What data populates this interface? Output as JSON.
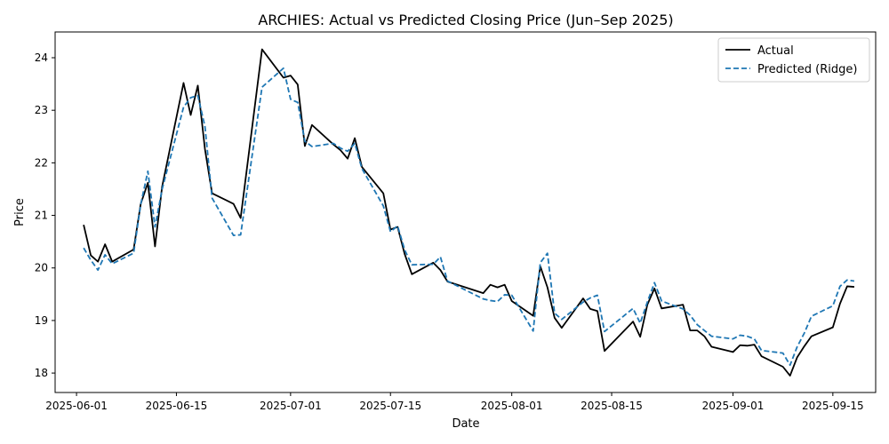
{
  "chart_data": {
    "type": "line",
    "title": "ARCHIES: Actual vs Predicted Closing Price (Jun–Sep 2025)",
    "xlabel": "Date",
    "ylabel": "Price",
    "xlim": [
      "2025-05-29",
      "2025-09-21"
    ],
    "ylim": [
      17.63,
      24.49
    ],
    "x_ticks": [
      "2025-06-01",
      "2025-06-15",
      "2025-07-01",
      "2025-07-15",
      "2025-08-01",
      "2025-08-15",
      "2025-09-01",
      "2025-09-15"
    ],
    "y_ticks": [
      18,
      19,
      20,
      21,
      22,
      23,
      24
    ],
    "grid": false,
    "legend_position": "top-right",
    "x": [
      "2025-06-02",
      "2025-06-03",
      "2025-06-04",
      "2025-06-05",
      "2025-06-06",
      "2025-06-09",
      "2025-06-10",
      "2025-06-11",
      "2025-06-12",
      "2025-06-13",
      "2025-06-16",
      "2025-06-17",
      "2025-06-18",
      "2025-06-19",
      "2025-06-20",
      "2025-06-23",
      "2025-06-24",
      "2025-06-27",
      "2025-06-30",
      "2025-07-01",
      "2025-07-02",
      "2025-07-03",
      "2025-07-04",
      "2025-07-07",
      "2025-07-08",
      "2025-07-09",
      "2025-07-10",
      "2025-07-11",
      "2025-07-14",
      "2025-07-15",
      "2025-07-16",
      "2025-07-17",
      "2025-07-18",
      "2025-07-21",
      "2025-07-22",
      "2025-07-23",
      "2025-07-28",
      "2025-07-29",
      "2025-07-30",
      "2025-07-31",
      "2025-08-01",
      "2025-08-04",
      "2025-08-05",
      "2025-08-06",
      "2025-08-07",
      "2025-08-08",
      "2025-08-11",
      "2025-08-12",
      "2025-08-13",
      "2025-08-14",
      "2025-08-18",
      "2025-08-19",
      "2025-08-20",
      "2025-08-21",
      "2025-08-22",
      "2025-08-25",
      "2025-08-26",
      "2025-08-27",
      "2025-08-28",
      "2025-08-29",
      "2025-09-01",
      "2025-09-02",
      "2025-09-03",
      "2025-09-04",
      "2025-09-05",
      "2025-09-08",
      "2025-09-09",
      "2025-09-10",
      "2025-09-11",
      "2025-09-12",
      "2025-09-15",
      "2025-09-16",
      "2025-09-17",
      "2025-09-18"
    ],
    "series": [
      {
        "name": "Actual",
        "color": "#000000",
        "style": "solid",
        "values": [
          20.82,
          20.24,
          20.12,
          20.45,
          20.12,
          20.35,
          21.22,
          21.62,
          20.41,
          21.55,
          23.52,
          22.91,
          23.47,
          22.26,
          21.42,
          21.22,
          20.95,
          24.16,
          23.62,
          23.66,
          23.49,
          22.32,
          22.72,
          22.35,
          22.24,
          22.08,
          22.47,
          21.92,
          21.42,
          20.73,
          20.78,
          20.26,
          19.88,
          20.1,
          19.96,
          19.74,
          19.52,
          19.68,
          19.63,
          19.68,
          19.37,
          19.09,
          20.03,
          19.63,
          19.05,
          18.86,
          19.42,
          19.22,
          19.18,
          18.42,
          18.98,
          18.69,
          19.3,
          19.61,
          19.23,
          19.3,
          18.81,
          18.81,
          18.7,
          18.5,
          18.4,
          18.53,
          18.52,
          18.54,
          18.32,
          18.12,
          17.95,
          18.3,
          18.51,
          18.7,
          18.87,
          19.32,
          19.65,
          19.64
        ]
      },
      {
        "name": "Predicted (Ridge)",
        "color": "#1f77b4",
        "style": "dashed",
        "values": [
          20.38,
          20.15,
          19.96,
          20.25,
          20.08,
          20.28,
          21.21,
          21.84,
          20.78,
          21.5,
          23.06,
          23.24,
          23.28,
          22.69,
          21.33,
          20.62,
          20.63,
          23.44,
          23.8,
          23.21,
          23.15,
          22.41,
          22.31,
          22.37,
          22.28,
          22.22,
          22.37,
          21.89,
          21.18,
          20.69,
          20.8,
          20.34,
          20.06,
          20.07,
          20.21,
          19.75,
          19.41,
          19.38,
          19.36,
          19.49,
          19.48,
          18.8,
          20.1,
          20.28,
          19.14,
          19.02,
          19.35,
          19.43,
          19.48,
          18.79,
          19.23,
          18.95,
          19.35,
          19.72,
          19.37,
          19.22,
          19.1,
          18.92,
          18.81,
          18.7,
          18.65,
          18.72,
          18.7,
          18.65,
          18.43,
          18.38,
          18.15,
          18.5,
          18.76,
          19.08,
          19.28,
          19.65,
          19.77,
          19.75
        ]
      }
    ]
  }
}
